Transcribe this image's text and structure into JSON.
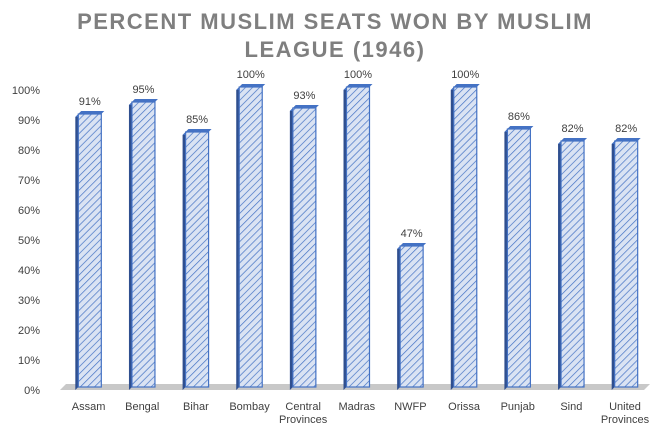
{
  "chart_data": {
    "type": "bar",
    "title_lines": [
      "PERCENT MUSLIM SEATS WON BY MUSLIM",
      "LEAGUE (1946)"
    ],
    "xlabel": "",
    "ylabel": "",
    "ylim": [
      0,
      100
    ],
    "yticks": [
      0,
      10,
      20,
      30,
      40,
      50,
      60,
      70,
      80,
      90,
      100
    ],
    "ytick_labels": [
      "0%",
      "10%",
      "20%",
      "30%",
      "40%",
      "50%",
      "60%",
      "70%",
      "80%",
      "90%",
      "100%"
    ],
    "categories": [
      [
        "Assam"
      ],
      [
        "Bengal"
      ],
      [
        "Bihar"
      ],
      [
        "Bombay"
      ],
      [
        "Central",
        "Provinces"
      ],
      [
        "Madras"
      ],
      [
        "NWFP"
      ],
      [
        "Orissa"
      ],
      [
        "Punjab"
      ],
      [
        "Sind"
      ],
      [
        "United",
        "Provinces"
      ]
    ],
    "values": [
      91,
      95,
      85,
      100,
      93,
      100,
      47,
      100,
      86,
      82,
      82
    ],
    "data_labels": [
      "91%",
      "95%",
      "85%",
      "100%",
      "93%",
      "100%",
      "47%",
      "100%",
      "86%",
      "82%",
      "82%"
    ],
    "grid": false,
    "legend": "none",
    "bar_style": "3d, diagonal hatch",
    "colors": {
      "bar_fill": "#dae3f3",
      "bar_hatch": "#4472c4",
      "bar_edge": "#4472c4",
      "bar_side": "#2f4f8f",
      "floor": "#c8c8c8",
      "title": "#7f7f7f",
      "text": "#404040"
    }
  }
}
